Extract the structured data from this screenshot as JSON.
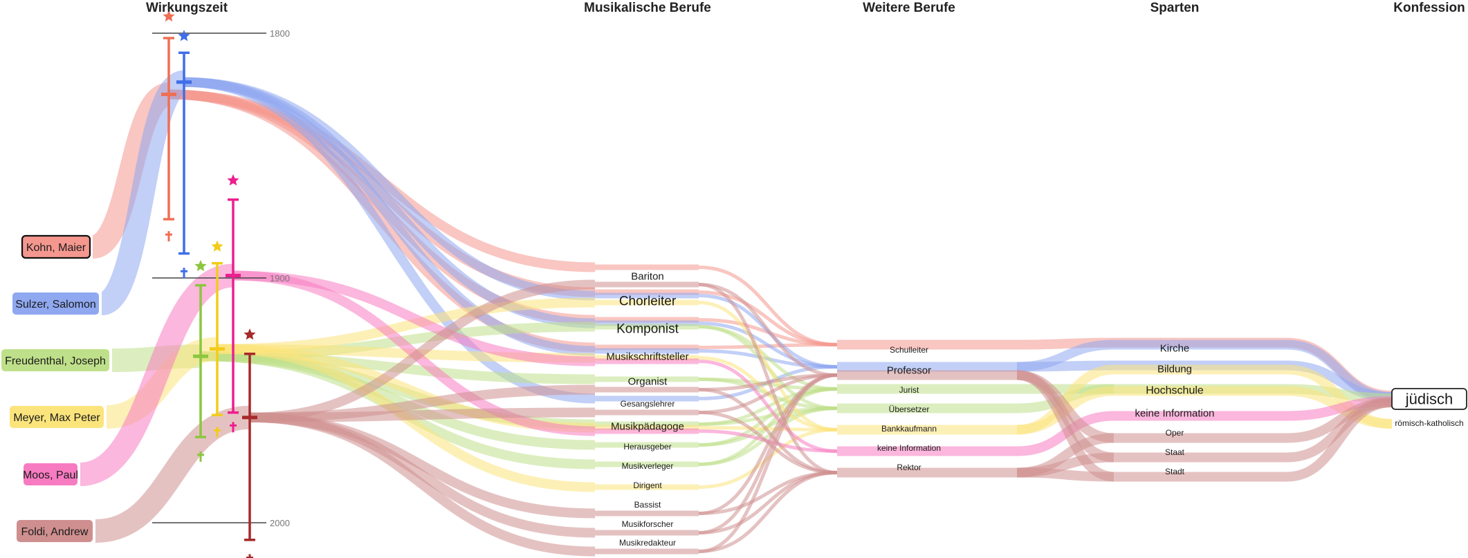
{
  "columns": [
    "Wirkungszeit",
    "Musikalische Berufe",
    "Weitere Berufe",
    "Sparten",
    "Konfession"
  ],
  "timeline": {
    "ticks": [
      "1800",
      "1900",
      "2000"
    ]
  },
  "persons": [
    {
      "id": "kohn",
      "name": "Kohn, Maier",
      "color": "#f4978e",
      "selected": true,
      "musik": [
        "Bariton",
        "Chorleiter",
        "Komponist",
        "Musikschriftsteller"
      ],
      "weitere": [
        "Schulleiter"
      ],
      "sparten": [
        "Kirche"
      ],
      "konfession": "jüdisch"
    },
    {
      "id": "sulzer",
      "name": "Sulzer, Salomon",
      "color": "#8fa8f0",
      "selected": false,
      "musik": [
        "Chorleiter",
        "Komponist",
        "Musikschriftsteller",
        "Gesangslehrer"
      ],
      "weitere": [
        "Professor"
      ],
      "sparten": [
        "Kirche",
        "Bildung"
      ],
      "konfession": "jüdisch"
    },
    {
      "id": "freudenthal",
      "name": "Freudenthal, Joseph",
      "color": "#bfe08a",
      "selected": false,
      "musik": [
        "Komponist",
        "Organist",
        "Musikpädagoge",
        "Herausgeber",
        "Musikverleger"
      ],
      "weitere": [
        "Jurist",
        "Übersetzer"
      ],
      "sparten": [
        "Hochschule"
      ],
      "konfession": "jüdisch"
    },
    {
      "id": "meyer",
      "name": "Meyer, Max Peter",
      "color": "#fbe47c",
      "selected": false,
      "musik": [
        "Chorleiter",
        "Musikschriftsteller",
        "Musikpädagoge",
        "Dirigent"
      ],
      "weitere": [
        "Bankkaufmann"
      ],
      "sparten": [
        "Bildung",
        "Hochschule"
      ],
      "konfession": "römisch-katholisch"
    },
    {
      "id": "moos",
      "name": "Moos, Paul",
      "color": "#f77bc1",
      "selected": false,
      "musik": [
        "Musikschriftsteller",
        "Musikpädagoge"
      ],
      "weitere": [
        "keine Information"
      ],
      "sparten": [
        "keine Information"
      ],
      "konfession": "jüdisch"
    },
    {
      "id": "foldi",
      "name": "Foldi, Andrew",
      "color": "#cf8f8f",
      "selected": false,
      "musik": [
        "Bariton",
        "Organist",
        "Gesangslehrer",
        "Bassist",
        "Musikforscher",
        "Musikredakteur"
      ],
      "weitere": [
        "Professor",
        "Rektor"
      ],
      "sparten": [
        "Oper",
        "Staat",
        "Stadt"
      ],
      "konfession": "jüdisch"
    }
  ],
  "lifelines": [
    {
      "person": "kohn",
      "birth": 1796,
      "work_start": 1802,
      "work_mid": 1825,
      "work_end": 1876,
      "death": 1880,
      "color": "#ef6f53"
    },
    {
      "person": "sulzer",
      "birth": 1804,
      "work_start": 1808,
      "work_mid": 1820,
      "work_end": 1890,
      "death": 1895,
      "color": "#3f6ee8"
    },
    {
      "person": "freudenthal",
      "birth": 1898,
      "work_start": 1903,
      "work_mid": 1932,
      "work_end": 1965,
      "death": 1970,
      "color": "#8cc63f"
    },
    {
      "person": "meyer",
      "birth": 1890,
      "work_start": 1894,
      "work_mid": 1929,
      "work_end": 1956,
      "death": 1960,
      "color": "#f2cc1b"
    },
    {
      "person": "moos",
      "birth": 1863,
      "work_start": 1868,
      "work_mid": 1899,
      "work_end": 1955,
      "death": 1958,
      "color": "#ec1f8e"
    },
    {
      "person": "foldi",
      "birth": 1926,
      "work_start": 1931,
      "work_mid": 1957,
      "work_end": 2007,
      "death": 2012,
      "color": "#a52a2a"
    }
  ],
  "musik_nodes": [
    {
      "label": "Bariton",
      "size": "medium"
    },
    {
      "label": "Chorleiter",
      "size": "large"
    },
    {
      "label": "Komponist",
      "size": "large"
    },
    {
      "label": "Musikschriftsteller",
      "size": "medium"
    },
    {
      "label": "Organist",
      "size": "medium"
    },
    {
      "label": "Gesangslehrer",
      "size": "small"
    },
    {
      "label": "Musikpädagoge",
      "size": "medium"
    },
    {
      "label": "Herausgeber",
      "size": "small"
    },
    {
      "label": "Musikverleger",
      "size": "small"
    },
    {
      "label": "Dirigent",
      "size": "small"
    },
    {
      "label": "Bassist",
      "size": "small"
    },
    {
      "label": "Musikforscher",
      "size": "small"
    },
    {
      "label": "Musikredakteur",
      "size": "small"
    }
  ],
  "weitere_nodes": [
    {
      "label": "Schulleiter",
      "size": "small"
    },
    {
      "label": "Professor",
      "size": "medium"
    },
    {
      "label": "Jurist",
      "size": "small"
    },
    {
      "label": "Übersetzer",
      "size": "small"
    },
    {
      "label": "Bankkaufmann",
      "size": "small"
    },
    {
      "label": "keine Information",
      "size": "small"
    },
    {
      "label": "Rektor",
      "size": "small"
    }
  ],
  "sparten_nodes": [
    {
      "label": "Kirche",
      "size": "medium"
    },
    {
      "label": "Bildung",
      "size": "medium"
    },
    {
      "label": "Hochschule",
      "size": "medium-large"
    },
    {
      "label": "keine Information",
      "size": "medium"
    },
    {
      "label": "Oper",
      "size": "small"
    },
    {
      "label": "Staat",
      "size": "small"
    },
    {
      "label": "Stadt",
      "size": "small"
    }
  ],
  "konfession_nodes": [
    {
      "label": "jüdisch",
      "size": "xlarge",
      "selected": true
    },
    {
      "label": "römisch-katholisch",
      "size": "small"
    }
  ]
}
